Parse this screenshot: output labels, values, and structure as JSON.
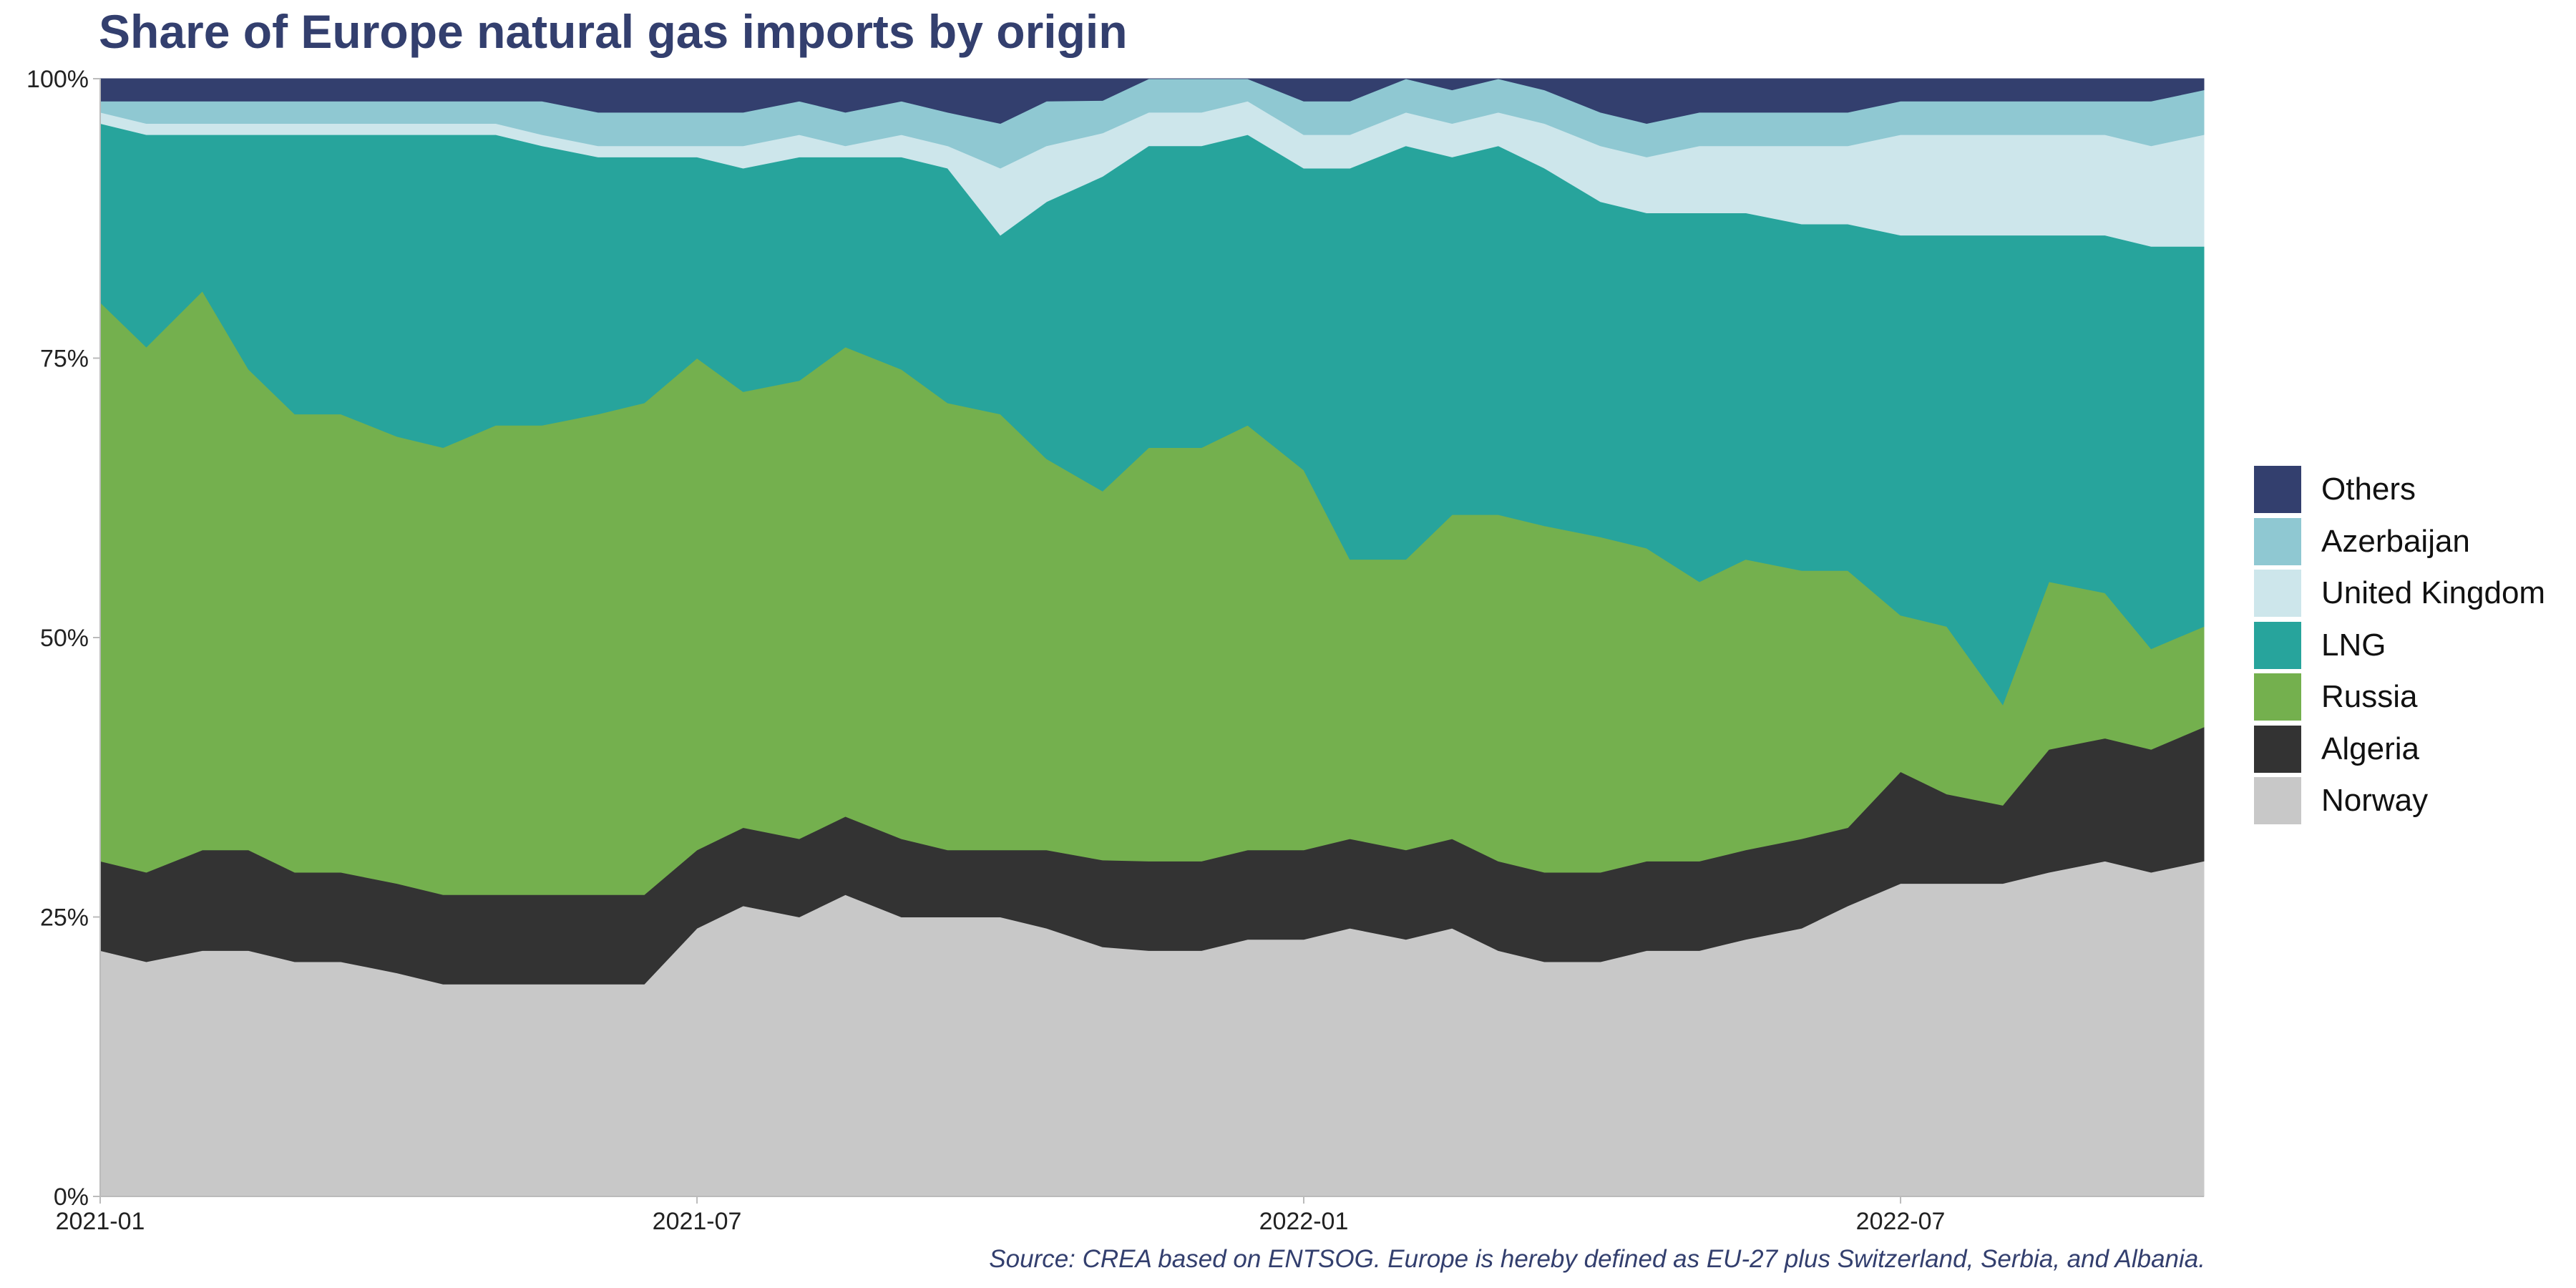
{
  "title": "Share of Europe natural gas imports by origin",
  "source": "Source: CREA based on ENTSOG. Europe is hereby defined as EU-27 plus Switzerland, Serbia, and Albania.",
  "chart_data": {
    "type": "area",
    "stacked": "percent",
    "title": "Share of Europe natural gas imports by origin",
    "xlabel": "",
    "ylabel": "",
    "x_ticks": [
      "2021-01",
      "2021-07",
      "2022-01",
      "2022-07"
    ],
    "y_ticks": [
      "0%",
      "25%",
      "50%",
      "75%",
      "100%"
    ],
    "ylim": [
      0,
      100
    ],
    "grid": false,
    "legend_position": "right",
    "x": [
      "2021-01-01",
      "2021-01-15",
      "2021-02-01",
      "2021-02-15",
      "2021-03-01",
      "2021-03-15",
      "2021-04-01",
      "2021-04-15",
      "2021-05-01",
      "2021-05-15",
      "2021-06-01",
      "2021-06-15",
      "2021-07-01",
      "2021-07-15",
      "2021-08-01",
      "2021-08-15",
      "2021-09-01",
      "2021-09-15",
      "2021-10-01",
      "2021-10-15",
      "2021-11-01",
      "2021-11-15",
      "2021-12-01",
      "2021-12-15",
      "2022-01-01",
      "2022-01-15",
      "2022-02-01",
      "2022-02-15",
      "2022-03-01",
      "2022-03-15",
      "2022-04-01",
      "2022-04-15",
      "2022-05-01",
      "2022-05-15",
      "2022-06-01",
      "2022-06-15",
      "2022-07-01",
      "2022-07-15",
      "2022-08-01",
      "2022-08-15",
      "2022-09-01",
      "2022-09-15",
      "2022-10-01"
    ],
    "series": [
      {
        "name": "Norway",
        "color": "#c8c8c8",
        "values": [
          22,
          21,
          22,
          22,
          21,
          21,
          20,
          19,
          19,
          19,
          19,
          19,
          24,
          26,
          25,
          27,
          25,
          25,
          25,
          24,
          23,
          22,
          22,
          23,
          23,
          24,
          23,
          24,
          22,
          21,
          21,
          22,
          22,
          23,
          24,
          26,
          28,
          28,
          28,
          29,
          30,
          29,
          30
        ]
      },
      {
        "name": "Algeria",
        "color": "#333333",
        "values": [
          8,
          8,
          9,
          9,
          8,
          8,
          8,
          8,
          8,
          8,
          8,
          8,
          7,
          7,
          7,
          7,
          7,
          6,
          6,
          7,
          8,
          8,
          8,
          8,
          8,
          8,
          8,
          8,
          8,
          8,
          8,
          8,
          8,
          8,
          8,
          7,
          10,
          8,
          7,
          11,
          11,
          11,
          12
        ]
      },
      {
        "name": "Russia",
        "color": "#74b04e",
        "values": [
          50,
          47,
          50,
          43,
          41,
          41,
          40,
          40,
          42,
          42,
          43,
          44,
          44,
          39,
          41,
          42,
          42,
          40,
          39,
          35,
          34,
          37,
          37,
          38,
          34,
          25,
          26,
          29,
          31,
          31,
          30,
          28,
          25,
          26,
          24,
          23,
          14,
          15,
          9,
          15,
          13,
          9,
          9
        ]
      },
      {
        "name": "LNG",
        "color": "#27a49c",
        "values": [
          16,
          19,
          14,
          21,
          25,
          25,
          27,
          28,
          26,
          25,
          23,
          22,
          18,
          20,
          20,
          17,
          19,
          21,
          16,
          23,
          29,
          27,
          27,
          26,
          27,
          35,
          37,
          32,
          33,
          32,
          30,
          30,
          33,
          31,
          31,
          31,
          34,
          35,
          42,
          31,
          32,
          36,
          34
        ]
      },
      {
        "name": "United Kingdom",
        "color": "#cde6eb",
        "values": [
          1,
          1,
          1,
          1,
          1,
          1,
          1,
          1,
          1,
          1,
          1,
          1,
          1,
          2,
          2,
          1,
          2,
          2,
          6,
          5,
          4,
          3,
          3,
          3,
          3,
          3,
          3,
          3,
          3,
          4,
          5,
          5,
          6,
          6,
          7,
          7,
          9,
          9,
          9,
          9,
          9,
          9,
          10
        ]
      },
      {
        "name": "Azerbaijan",
        "color": "#8fc8d2",
        "values": [
          1,
          2,
          2,
          2,
          2,
          2,
          2,
          2,
          2,
          3,
          3,
          3,
          3,
          3,
          3,
          3,
          3,
          3,
          4,
          4,
          3,
          3,
          3,
          2,
          3,
          3,
          3,
          3,
          3,
          3,
          3,
          3,
          3,
          3,
          3,
          3,
          3,
          3,
          3,
          3,
          3,
          4,
          4
        ]
      },
      {
        "name": "Others",
        "color": "#333f6e",
        "values": [
          2,
          2,
          2,
          2,
          2,
          2,
          2,
          2,
          2,
          2,
          3,
          3,
          3,
          3,
          2,
          3,
          2,
          3,
          4,
          2,
          2,
          0,
          0,
          0,
          2,
          2,
          0,
          1,
          0,
          1,
          3,
          4,
          3,
          3,
          3,
          3,
          2,
          2,
          2,
          2,
          2,
          2,
          1
        ]
      }
    ]
  },
  "legend": [
    {
      "label": "Others",
      "color": "#333f6e"
    },
    {
      "label": "Azerbaijan",
      "color": "#8fc8d2"
    },
    {
      "label": "United Kingdom",
      "color": "#cde6eb"
    },
    {
      "label": "LNG",
      "color": "#27a49c"
    },
    {
      "label": "Russia",
      "color": "#74b04e"
    },
    {
      "label": "Algeria",
      "color": "#333333"
    },
    {
      "label": "Norway",
      "color": "#c8c8c8"
    }
  ]
}
